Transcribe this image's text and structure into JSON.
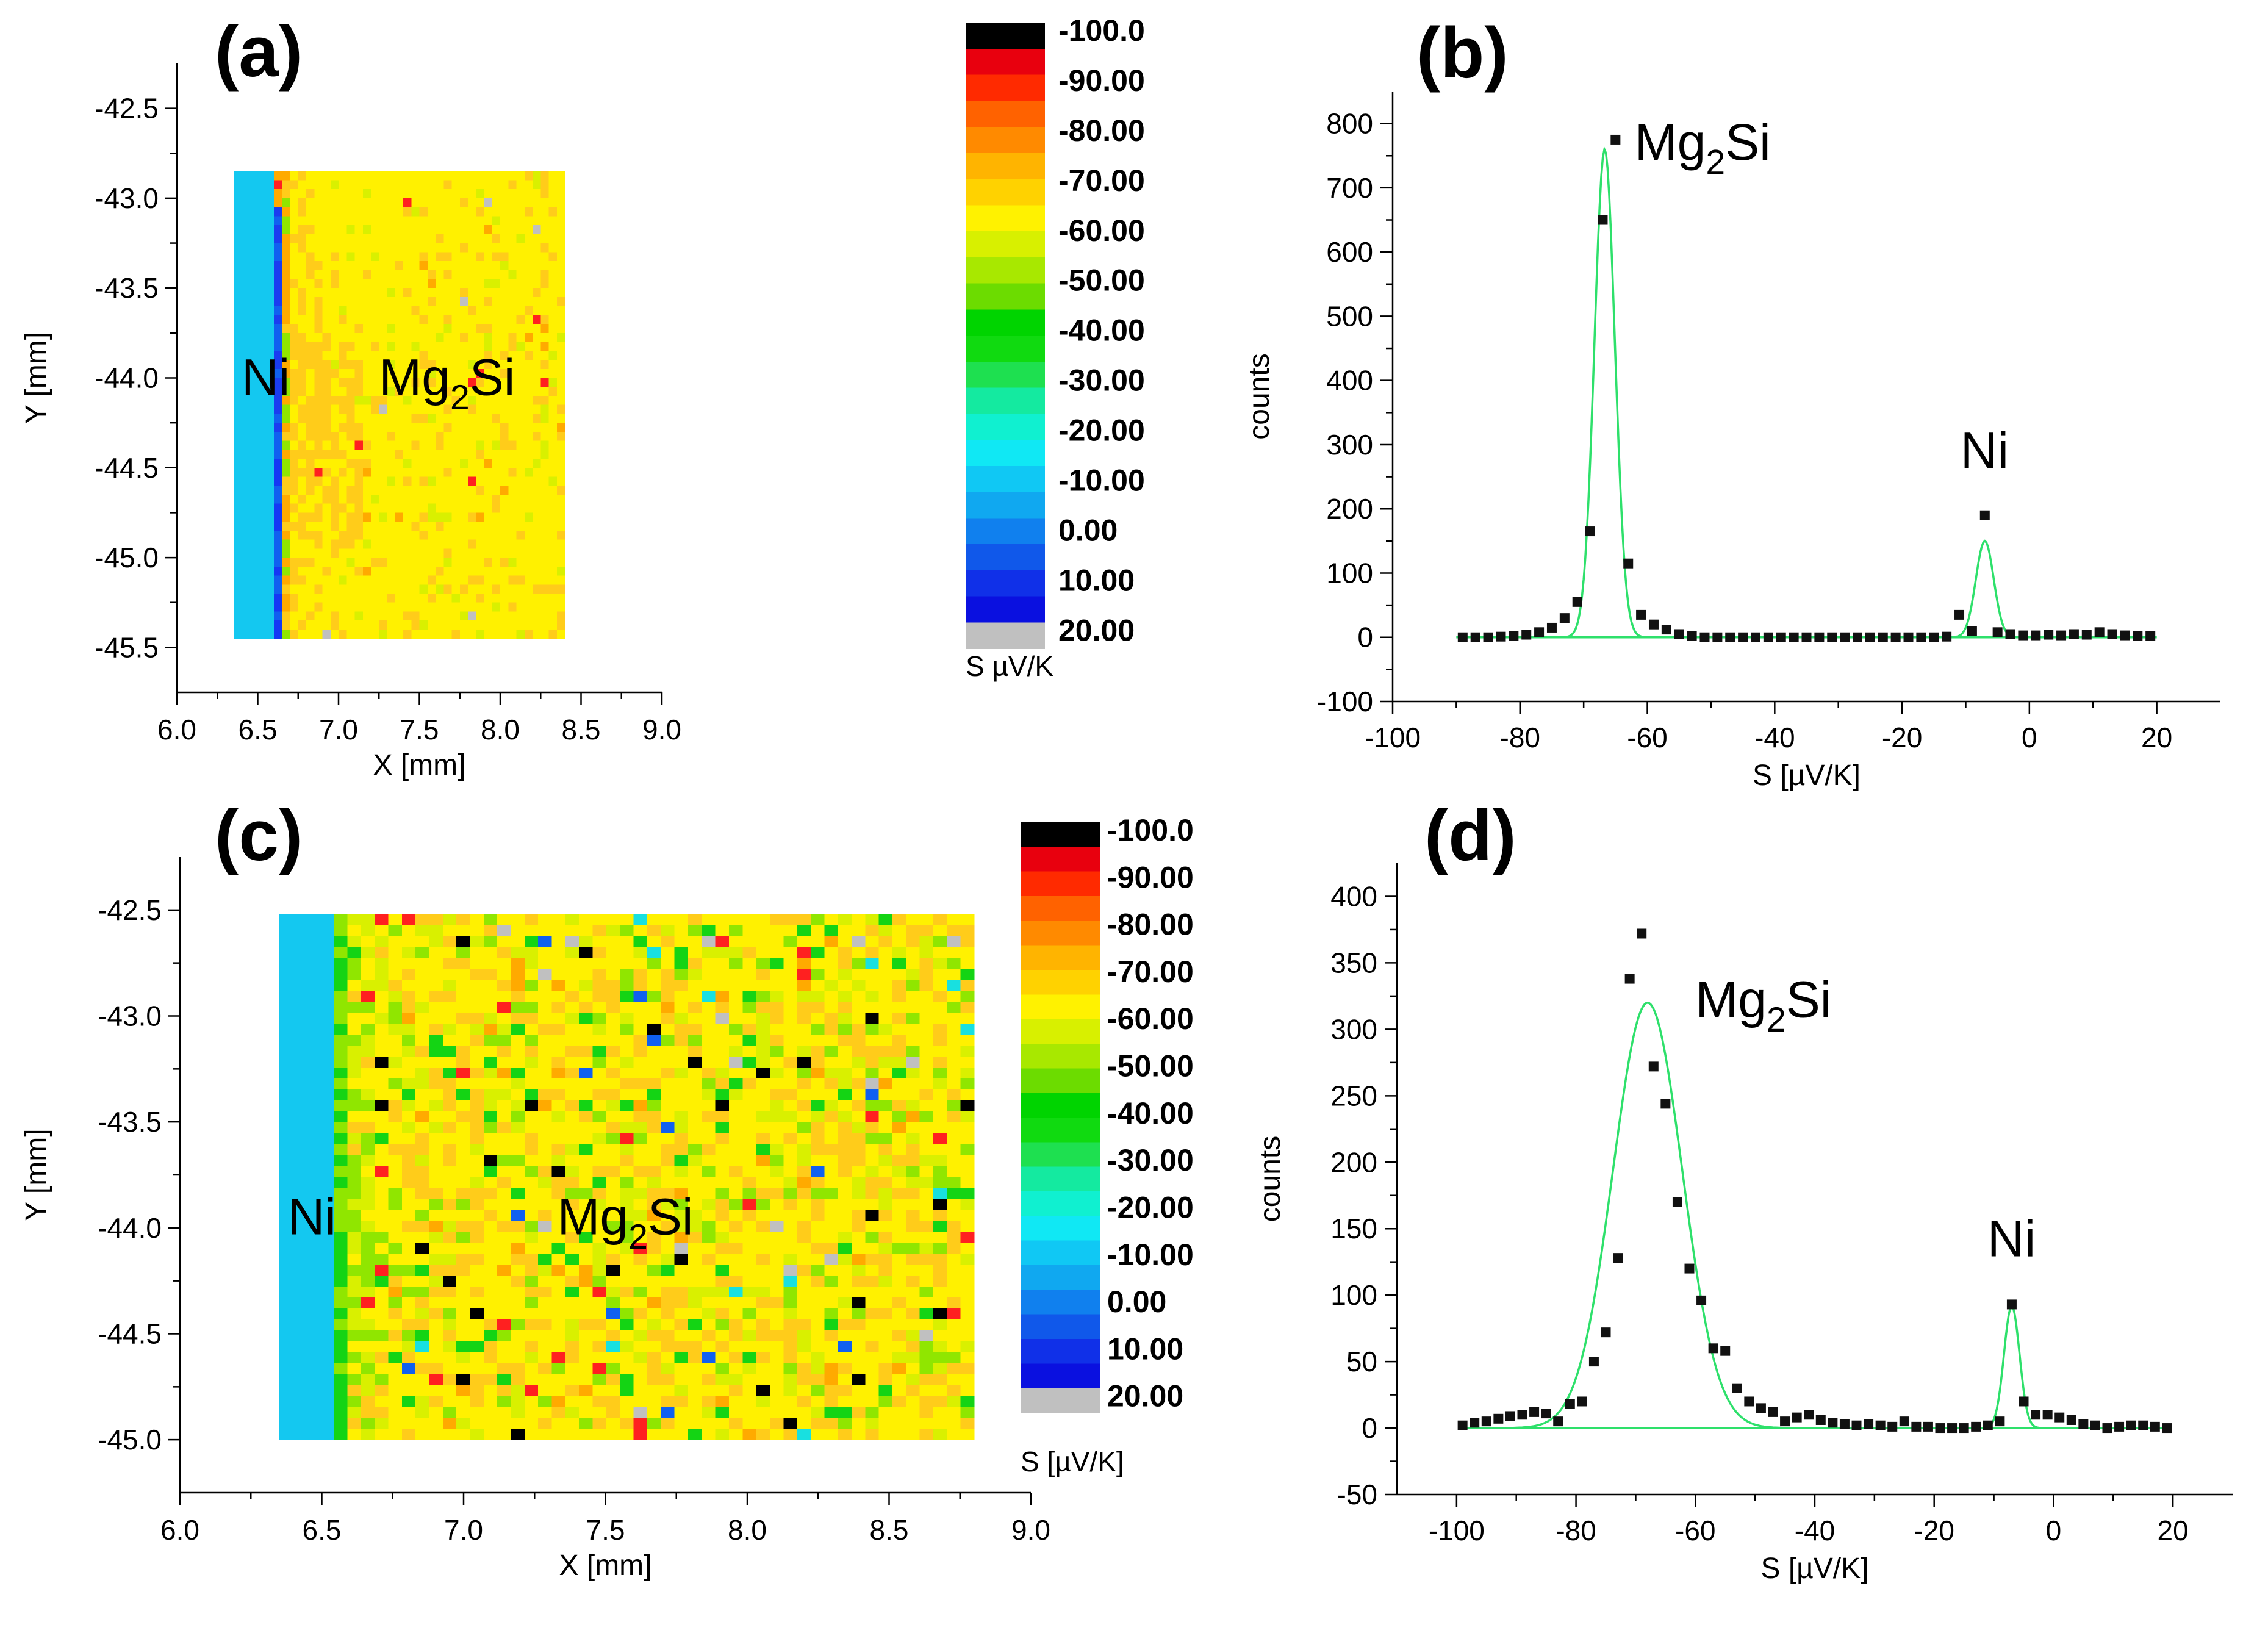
{
  "chart_data": [
    {
      "id": "a",
      "panel_label": "(a)",
      "type": "heatmap",
      "xlabel": "X [mm]",
      "ylabel": "Y [mm]",
      "xlim": [
        6.0,
        9.0
      ],
      "ylim": [
        -45.75,
        -42.25
      ],
      "x_ticks": [
        "6.0",
        "6.5",
        "7.0",
        "7.5",
        "8.0",
        "8.5",
        "9.0"
      ],
      "y_ticks": [
        "-42.5",
        "-43.0",
        "-43.5",
        "-44.0",
        "-44.5",
        "-45.0",
        "-45.5"
      ],
      "map_extent": {
        "x": [
          6.35,
          8.4
        ],
        "y": [
          -45.45,
          -42.85
        ]
      },
      "ni_boundary_x": 6.6,
      "annotations": [
        {
          "text": "Ni",
          "x": 6.4,
          "y": -44.0
        },
        {
          "text": "Mg",
          "sub": "2",
          "after": "Si",
          "x": 7.25,
          "y": -44.0
        }
      ],
      "map_rows": 52,
      "map_cols": 41,
      "speckle": "low",
      "colorbar": {
        "title": "S µV/K",
        "labels": [
          "-100.0",
          "-90.00",
          "-80.00",
          "-70.00",
          "-60.00",
          "-50.00",
          "-40.00",
          "-30.00",
          "-20.00",
          "-10.00",
          "0.00",
          "10.00",
          "20.00"
        ]
      }
    },
    {
      "id": "b",
      "panel_label": "(b)",
      "type": "scatter",
      "xlabel": "S [µV/K]",
      "ylabel": "counts",
      "xlim": [
        -100,
        30
      ],
      "ylim": [
        -100,
        850
      ],
      "x_ticks": [
        "-100",
        "-80",
        "-60",
        "-40",
        "-20",
        "0",
        "20"
      ],
      "y_ticks": [
        "800",
        "700",
        "600",
        "500",
        "400",
        "300",
        "200",
        "100",
        "0",
        "-100"
      ],
      "points": [
        [
          -89,
          0
        ],
        [
          -87,
          0
        ],
        [
          -85,
          0
        ],
        [
          -83,
          1
        ],
        [
          -81,
          2
        ],
        [
          -79,
          4
        ],
        [
          -77,
          8
        ],
        [
          -75,
          15
        ],
        [
          -73,
          30
        ],
        [
          -71,
          55
        ],
        [
          -69,
          165
        ],
        [
          -67,
          650
        ],
        [
          -65,
          775
        ],
        [
          -63,
          115
        ],
        [
          -61,
          35
        ],
        [
          -59,
          20
        ],
        [
          -57,
          12
        ],
        [
          -55,
          5
        ],
        [
          -53,
          2
        ],
        [
          -51,
          0
        ],
        [
          -49,
          0
        ],
        [
          -47,
          0
        ],
        [
          -45,
          0
        ],
        [
          -43,
          0
        ],
        [
          -41,
          0
        ],
        [
          -39,
          0
        ],
        [
          -37,
          0
        ],
        [
          -35,
          0
        ],
        [
          -33,
          0
        ],
        [
          -31,
          0
        ],
        [
          -29,
          0
        ],
        [
          -27,
          0
        ],
        [
          -25,
          0
        ],
        [
          -23,
          0
        ],
        [
          -21,
          0
        ],
        [
          -19,
          0
        ],
        [
          -17,
          0
        ],
        [
          -15,
          0
        ],
        [
          -13,
          1
        ],
        [
          -11,
          35
        ],
        [
          -9,
          10
        ],
        [
          -7,
          190
        ],
        [
          -5,
          8
        ],
        [
          -3,
          5
        ],
        [
          -1,
          3
        ],
        [
          1,
          3
        ],
        [
          3,
          4
        ],
        [
          5,
          3
        ],
        [
          7,
          5
        ],
        [
          9,
          4
        ],
        [
          11,
          8
        ],
        [
          13,
          5
        ],
        [
          15,
          3
        ],
        [
          17,
          2
        ],
        [
          19,
          2
        ]
      ],
      "fits": [
        {
          "name": "Mg2Si",
          "center": -66.7,
          "amplitude": 760,
          "sigma": 1.6
        },
        {
          "name": "Ni",
          "center": -7,
          "amplitude": 150,
          "sigma": 1.4
        }
      ],
      "fit_range": [
        -90,
        20
      ],
      "annotations": [
        {
          "text": "Mg",
          "sub": "2",
          "after": "Si",
          "x": -62,
          "y": 770
        },
        {
          "text": "Ni",
          "x": -7,
          "y": 290
        }
      ]
    },
    {
      "id": "c",
      "panel_label": "(c)",
      "type": "heatmap",
      "xlabel": "X [mm]",
      "ylabel": "Y [mm]",
      "xlim": [
        6.0,
        9.0
      ],
      "ylim": [
        -45.25,
        -42.25
      ],
      "x_ticks": [
        "6.0",
        "6.5",
        "7.0",
        "7.5",
        "8.0",
        "8.5",
        "9.0"
      ],
      "y_ticks": [
        "-42.5",
        "-43.0",
        "-43.5",
        "-44.0",
        "-44.5",
        "-45.0"
      ],
      "map_extent": {
        "x": [
          6.35,
          8.8
        ],
        "y": [
          -45.0,
          -42.52
        ]
      },
      "ni_boundary_x": 6.55,
      "annotations": [
        {
          "text": "Ni",
          "x": 6.38,
          "y": -43.95
        },
        {
          "text": "Mg",
          "sub": "2",
          "after": "Si",
          "x": 7.33,
          "y": -43.95
        }
      ],
      "map_rows": 48,
      "map_cols": 51,
      "speckle": "high",
      "colorbar": {
        "title": "S [µV/K]",
        "labels": [
          "-100.0",
          "-90.00",
          "-80.00",
          "-70.00",
          "-60.00",
          "-50.00",
          "-40.00",
          "-30.00",
          "-20.00",
          "-10.00",
          "0.00",
          "10.00",
          "20.00"
        ]
      }
    },
    {
      "id": "d",
      "panel_label": "(d)",
      "type": "scatter",
      "xlabel": "S [µV/K]",
      "ylabel": "counts",
      "xlim": [
        -110,
        30
      ],
      "ylim": [
        -50,
        425
      ],
      "x_ticks": [
        "-100",
        "-80",
        "-60",
        "-40",
        "-20",
        "0",
        "20"
      ],
      "y_ticks": [
        "400",
        "350",
        "300",
        "250",
        "200",
        "150",
        "100",
        "50",
        "0",
        "-50"
      ],
      "points": [
        [
          -99,
          2
        ],
        [
          -97,
          4
        ],
        [
          -95,
          5
        ],
        [
          -93,
          7
        ],
        [
          -91,
          9
        ],
        [
          -89,
          10
        ],
        [
          -87,
          12
        ],
        [
          -85,
          11
        ],
        [
          -83,
          5
        ],
        [
          -81,
          18
        ],
        [
          -79,
          20
        ],
        [
          -77,
          50
        ],
        [
          -75,
          72
        ],
        [
          -73,
          128
        ],
        [
          -71,
          338
        ],
        [
          -69,
          372
        ],
        [
          -67,
          272
        ],
        [
          -65,
          244
        ],
        [
          -63,
          170
        ],
        [
          -61,
          120
        ],
        [
          -59,
          96
        ],
        [
          -57,
          60
        ],
        [
          -55,
          58
        ],
        [
          -53,
          30
        ],
        [
          -51,
          20
        ],
        [
          -49,
          15
        ],
        [
          -47,
          12
        ],
        [
          -45,
          5
        ],
        [
          -43,
          8
        ],
        [
          -41,
          10
        ],
        [
          -39,
          6
        ],
        [
          -37,
          4
        ],
        [
          -35,
          3
        ],
        [
          -33,
          2
        ],
        [
          -31,
          3
        ],
        [
          -29,
          2
        ],
        [
          -27,
          1
        ],
        [
          -25,
          5
        ],
        [
          -23,
          1
        ],
        [
          -21,
          1
        ],
        [
          -19,
          0
        ],
        [
          -17,
          0
        ],
        [
          -15,
          0
        ],
        [
          -13,
          1
        ],
        [
          -11,
          2
        ],
        [
          -9,
          5
        ],
        [
          -7,
          93
        ],
        [
          -5,
          20
        ],
        [
          -3,
          10
        ],
        [
          -1,
          10
        ],
        [
          1,
          8
        ],
        [
          3,
          6
        ],
        [
          5,
          3
        ],
        [
          7,
          2
        ],
        [
          9,
          0
        ],
        [
          11,
          1
        ],
        [
          13,
          2
        ],
        [
          15,
          2
        ],
        [
          17,
          1
        ],
        [
          19,
          0
        ]
      ],
      "fits": [
        {
          "name": "Mg2Si",
          "center": -68,
          "amplitude": 320,
          "sigma": 5.8
        },
        {
          "name": "Ni",
          "center": -7,
          "amplitude": 92,
          "sigma": 1.3
        }
      ],
      "fit_range": [
        -99,
        19
      ],
      "annotations": [
        {
          "text": "Mg",
          "sub": "2",
          "after": "Si",
          "x": -60,
          "y": 322
        },
        {
          "text": "Ni",
          "x": -7,
          "y": 142
        }
      ]
    }
  ],
  "colors": {
    "fit": "#2ee06b",
    "marker": "#111111",
    "axis": "#000000",
    "colorbar": [
      "#000000",
      "#e8000e",
      "#ff2a00",
      "#ff6200",
      "#ff8a00",
      "#ffb400",
      "#ffd200",
      "#fff200",
      "#d8f000",
      "#a8e800",
      "#6cdc00",
      "#00d400",
      "#10da10",
      "#1ee050",
      "#14eaa0",
      "#10f0d0",
      "#10e8f4",
      "#10c8f4",
      "#10a8f0",
      "#1080ee",
      "#1058ea",
      "#1030e8",
      "#0a10e0",
      "#c0c0c0"
    ],
    "map": {
      "ni": "#14c8f0",
      "mg2si_base": "#fff100",
      "orange": "#ffcc1a",
      "orange_dark": "#ffaa00",
      "green_light": "#d9f000",
      "green": "#90e600",
      "green_dark": "#14d414",
      "red": "#ff2020",
      "black": "#000000",
      "blue": "#1060f0",
      "gray": "#c0c0c0",
      "cyan": "#18e0e0"
    }
  }
}
